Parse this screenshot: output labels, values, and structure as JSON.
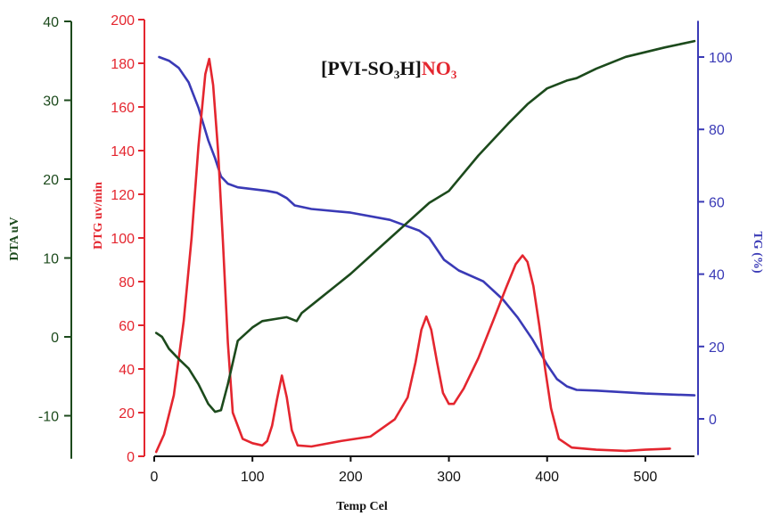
{
  "chart_data": {
    "type": "line",
    "title": {
      "main": "[PVI-SO",
      "sub": "3",
      "mid": "H]",
      "accent": "NO",
      "accent_sub": "3"
    },
    "xlabel": "Temp Cel",
    "xlim": [
      0,
      550
    ],
    "x_ticks": [
      0,
      100,
      200,
      300,
      400,
      500
    ],
    "grid": false,
    "colors": {
      "dta": "#1c4a1c",
      "dtg": "#e4262f",
      "tg": "#3a3ab6"
    },
    "axes": {
      "dta": {
        "label": "DTA uV",
        "ylim": [
          -15,
          40
        ],
        "ticks": [
          -10,
          0,
          10,
          20,
          30,
          40
        ]
      },
      "dtg": {
        "label": "DTG uv/min",
        "ylim": [
          0,
          200
        ],
        "ticks": [
          0,
          20,
          40,
          60,
          80,
          100,
          120,
          140,
          160,
          180,
          200
        ]
      },
      "tg": {
        "label": "TG (%)",
        "ylim": [
          -10,
          110
        ],
        "ticks": [
          0,
          20,
          40,
          60,
          80,
          100
        ]
      }
    },
    "series": [
      {
        "key": "tg",
        "axis": "tg",
        "points": [
          [
            5,
            100
          ],
          [
            15,
            99
          ],
          [
            25,
            97
          ],
          [
            35,
            93
          ],
          [
            45,
            86
          ],
          [
            55,
            77
          ],
          [
            62,
            72
          ],
          [
            68,
            67
          ],
          [
            75,
            65
          ],
          [
            85,
            64
          ],
          [
            100,
            63.5
          ],
          [
            115,
            63
          ],
          [
            125,
            62.5
          ],
          [
            135,
            61
          ],
          [
            143,
            59
          ],
          [
            160,
            58
          ],
          [
            200,
            57
          ],
          [
            240,
            55
          ],
          [
            270,
            52
          ],
          [
            280,
            50
          ],
          [
            295,
            44
          ],
          [
            310,
            41
          ],
          [
            335,
            38
          ],
          [
            355,
            33
          ],
          [
            370,
            28
          ],
          [
            385,
            22
          ],
          [
            400,
            15
          ],
          [
            410,
            11
          ],
          [
            420,
            9
          ],
          [
            430,
            8
          ],
          [
            450,
            7.8
          ],
          [
            500,
            7
          ],
          [
            550,
            6.5
          ]
        ]
      },
      {
        "key": "dtg",
        "axis": "dtg",
        "points": [
          [
            2,
            2
          ],
          [
            10,
            10
          ],
          [
            20,
            28
          ],
          [
            30,
            62
          ],
          [
            38,
            100
          ],
          [
            45,
            142
          ],
          [
            52,
            175
          ],
          [
            56,
            182
          ],
          [
            60,
            170
          ],
          [
            65,
            140
          ],
          [
            70,
            98
          ],
          [
            75,
            52
          ],
          [
            80,
            20
          ],
          [
            90,
            8
          ],
          [
            100,
            6
          ],
          [
            110,
            5
          ],
          [
            115,
            7
          ],
          [
            120,
            14
          ],
          [
            125,
            26
          ],
          [
            130,
            37
          ],
          [
            135,
            27
          ],
          [
            140,
            12
          ],
          [
            146,
            5
          ],
          [
            160,
            4.5
          ],
          [
            190,
            7
          ],
          [
            220,
            9
          ],
          [
            245,
            17
          ],
          [
            258,
            27
          ],
          [
            266,
            43
          ],
          [
            272,
            58
          ],
          [
            277,
            64
          ],
          [
            282,
            58
          ],
          [
            288,
            43
          ],
          [
            294,
            29
          ],
          [
            300,
            24
          ],
          [
            305,
            24
          ],
          [
            315,
            31
          ],
          [
            330,
            45
          ],
          [
            345,
            62
          ],
          [
            358,
            77
          ],
          [
            368,
            88
          ],
          [
            375,
            92
          ],
          [
            380,
            89
          ],
          [
            386,
            78
          ],
          [
            392,
            60
          ],
          [
            398,
            40
          ],
          [
            404,
            22
          ],
          [
            412,
            8
          ],
          [
            425,
            4
          ],
          [
            450,
            3
          ],
          [
            480,
            2.5
          ],
          [
            500,
            3
          ],
          [
            525,
            3.5
          ]
        ]
      },
      {
        "key": "dta",
        "axis": "dta",
        "points": [
          [
            2,
            0.5
          ],
          [
            8,
            0
          ],
          [
            15,
            -1.5
          ],
          [
            25,
            -2.8
          ],
          [
            35,
            -4
          ],
          [
            45,
            -6
          ],
          [
            55,
            -8.5
          ],
          [
            62,
            -9.5
          ],
          [
            68,
            -9.3
          ],
          [
            75,
            -6
          ],
          [
            85,
            -0.5
          ],
          [
            100,
            1.2
          ],
          [
            110,
            2
          ],
          [
            125,
            2.3
          ],
          [
            135,
            2.5
          ],
          [
            145,
            2
          ],
          [
            150,
            3
          ],
          [
            165,
            4.5
          ],
          [
            200,
            8
          ],
          [
            240,
            12.5
          ],
          [
            280,
            17
          ],
          [
            300,
            18.5
          ],
          [
            330,
            23
          ],
          [
            360,
            27
          ],
          [
            380,
            29.5
          ],
          [
            400,
            31.5
          ],
          [
            420,
            32.5
          ],
          [
            430,
            32.8
          ],
          [
            450,
            34
          ],
          [
            480,
            35.5
          ],
          [
            520,
            36.7
          ],
          [
            550,
            37.5
          ]
        ]
      }
    ]
  }
}
